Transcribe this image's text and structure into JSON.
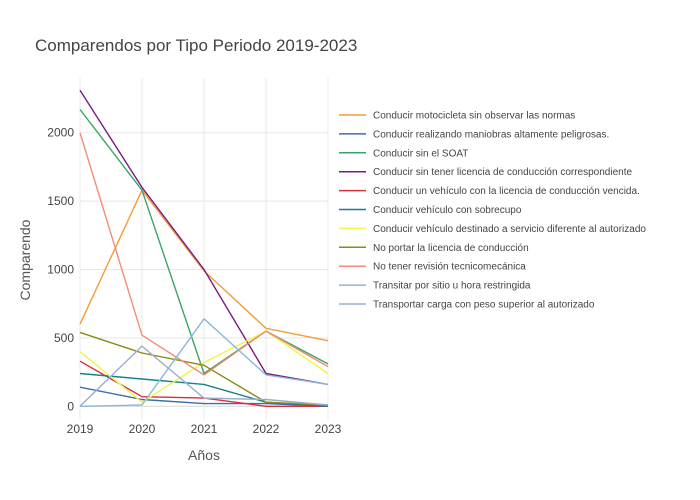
{
  "chart_data": {
    "type": "line",
    "title": "Comparendos por Tipo Periodo 2019-2023",
    "xlabel": "Años",
    "ylabel": "Comparendo",
    "x": [
      2019,
      2020,
      2021,
      2022,
      2023
    ],
    "x_ticks": [
      "2019",
      "2020",
      "2021",
      "2022",
      "2023"
    ],
    "y_ticks": [
      0,
      500,
      1000,
      1500,
      2000
    ],
    "xlim": [
      2019,
      2023
    ],
    "ylim": [
      -100,
      2400
    ],
    "grid": true,
    "legend_position": "right",
    "series": [
      {
        "name": "Conducir motocicleta sin observar las normas",
        "color": "#f39c38",
        "values": [
          600,
          1580,
          990,
          570,
          480
        ]
      },
      {
        "name": "Conducir realizando maniobras altamente peligrosas.",
        "color": "#3a6eb0",
        "values": [
          140,
          50,
          20,
          20,
          0
        ]
      },
      {
        "name": "Conducir sin el SOAT",
        "color": "#3aa565",
        "values": [
          2170,
          1580,
          240,
          550,
          310
        ]
      },
      {
        "name": "Conducir sin tener licencia de conducción correspondiente",
        "color": "#7b1a84",
        "values": [
          2310,
          1600,
          1000,
          240,
          160
        ]
      },
      {
        "name": "Conducir un vehículo con la licencia de conducción vencida.",
        "color": "#d62f3f",
        "values": [
          330,
          70,
          60,
          0,
          0
        ]
      },
      {
        "name": "Conducir vehículo con sobrecupo",
        "color": "#15818c",
        "values": [
          240,
          200,
          160,
          30,
          0
        ]
      },
      {
        "name": "Conducir vehículo destinado a servicio diferente al autorizado",
        "color": "#f4f444",
        "values": [
          400,
          30,
          320,
          550,
          240
        ]
      },
      {
        "name": "No portar la licencia de conducción",
        "color": "#8a8a15",
        "values": [
          540,
          390,
          300,
          30,
          10
        ]
      },
      {
        "name": "No tener revisión tecnicomecánica",
        "color": "#f48a78",
        "values": [
          2000,
          520,
          230,
          550,
          290
        ]
      },
      {
        "name": "Transitar por sitio u hora restringida",
        "color": "#8ab8dc",
        "values": [
          0,
          10,
          640,
          230,
          160
        ]
      },
      {
        "name": "Transportar carga con peso superior al autorizado",
        "color": "#98aecd",
        "values": [
          0,
          440,
          60,
          50,
          10
        ]
      }
    ]
  }
}
